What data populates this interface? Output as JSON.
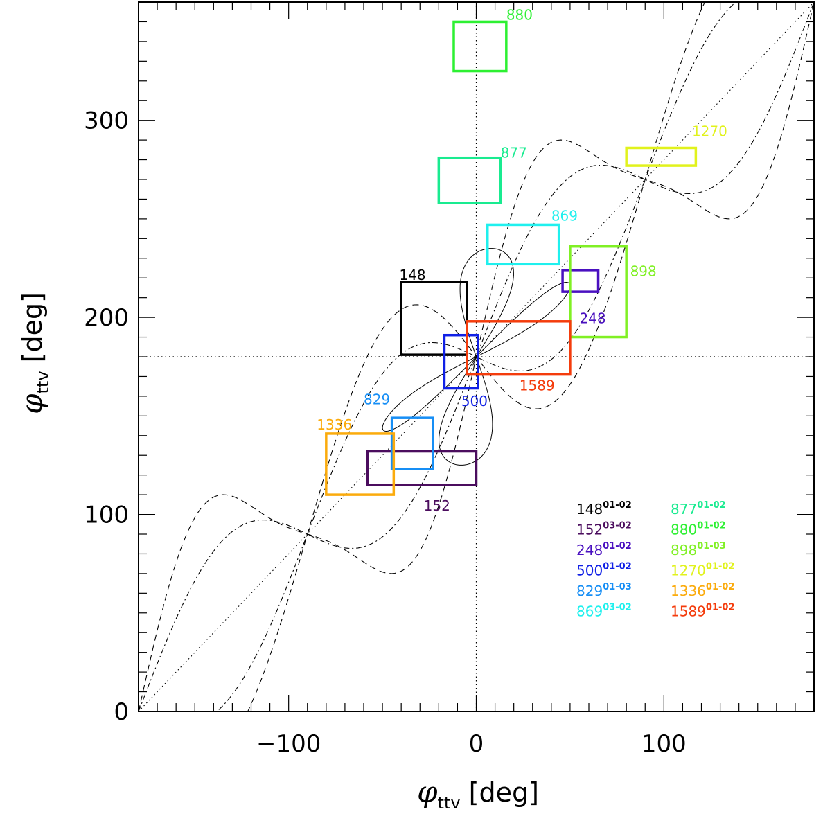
{
  "chart_data": {
    "type": "scatter",
    "xlabel": "φttv [deg]",
    "ylabel": "φttv [deg]",
    "xlim": [
      -180,
      180
    ],
    "ylim": [
      0,
      360
    ],
    "x_ticks": [
      -100,
      0,
      100
    ],
    "y_ticks": [
      0,
      100,
      200,
      300
    ],
    "grid": false,
    "legend_placement": "bottom-right",
    "reference_lines": [
      {
        "orientation": "vertical",
        "value": 0,
        "style": "dotted"
      },
      {
        "orientation": "horizontal",
        "value": 180,
        "style": "dotted"
      }
    ],
    "boxes": [
      {
        "label": "148",
        "sup": "01-02",
        "color": "#000000",
        "x": [
          -40,
          -5
        ],
        "y": [
          181,
          218
        ]
      },
      {
        "label": "152",
        "sup": "03-02",
        "color": "#4b0d5e",
        "x": [
          -58,
          0
        ],
        "y": [
          115,
          132
        ]
      },
      {
        "label": "248",
        "sup": "01-02",
        "color": "#4a10c0",
        "x": [
          46,
          65
        ],
        "y": [
          213,
          224
        ]
      },
      {
        "label": "500",
        "sup": "01-02",
        "color": "#1020e6",
        "x": [
          -17,
          1
        ],
        "y": [
          164,
          191
        ]
      },
      {
        "label": "829",
        "sup": "01-03",
        "color": "#168ef5",
        "x": [
          -45,
          -23
        ],
        "y": [
          123,
          149
        ]
      },
      {
        "label": "869",
        "sup": "03-02",
        "color": "#1ff0ee",
        "x": [
          6,
          44
        ],
        "y": [
          227,
          247
        ]
      },
      {
        "label": "877",
        "sup": "01-02",
        "color": "#19eb90",
        "x": [
          -20,
          13
        ],
        "y": [
          258,
          281
        ]
      },
      {
        "label": "880",
        "sup": "01-02",
        "color": "#2df032",
        "x": [
          -12,
          16
        ],
        "y": [
          325,
          350
        ]
      },
      {
        "label": "898",
        "sup": "01-03",
        "color": "#80f024",
        "x": [
          50,
          80
        ],
        "y": [
          190,
          236
        ]
      },
      {
        "label": "1270",
        "sup": "01-02",
        "color": "#e1f21c",
        "x": [
          80,
          117
        ],
        "y": [
          277,
          286
        ]
      },
      {
        "label": "1336",
        "sup": "01-02",
        "color": "#fbab0c",
        "x": [
          -80,
          -44
        ],
        "y": [
          110,
          141
        ]
      },
      {
        "label": "1589",
        "sup": "01-02",
        "color": "#f43c0c",
        "x": [
          -5,
          50
        ],
        "y": [
          171,
          198
        ]
      }
    ],
    "box_label_positions": [
      {
        "label": "148",
        "x": -41,
        "y": 219
      },
      {
        "label": "152",
        "x": -28,
        "y": 102
      },
      {
        "label": "248",
        "x": 55,
        "y": 197
      },
      {
        "label": "500",
        "x": -8,
        "y": 155
      },
      {
        "label": "829",
        "x": -60,
        "y": 156
      },
      {
        "label": "869",
        "x": 40,
        "y": 249
      },
      {
        "label": "877",
        "x": 13,
        "y": 281
      },
      {
        "label": "880",
        "x": 16,
        "y": 351
      },
      {
        "label": "898",
        "x": 82,
        "y": 221
      },
      {
        "label": "1270",
        "x": 115,
        "y": 292
      },
      {
        "label": "1336",
        "x": -85,
        "y": 143
      },
      {
        "label": "1589",
        "x": 23,
        "y": 163
      }
    ]
  }
}
